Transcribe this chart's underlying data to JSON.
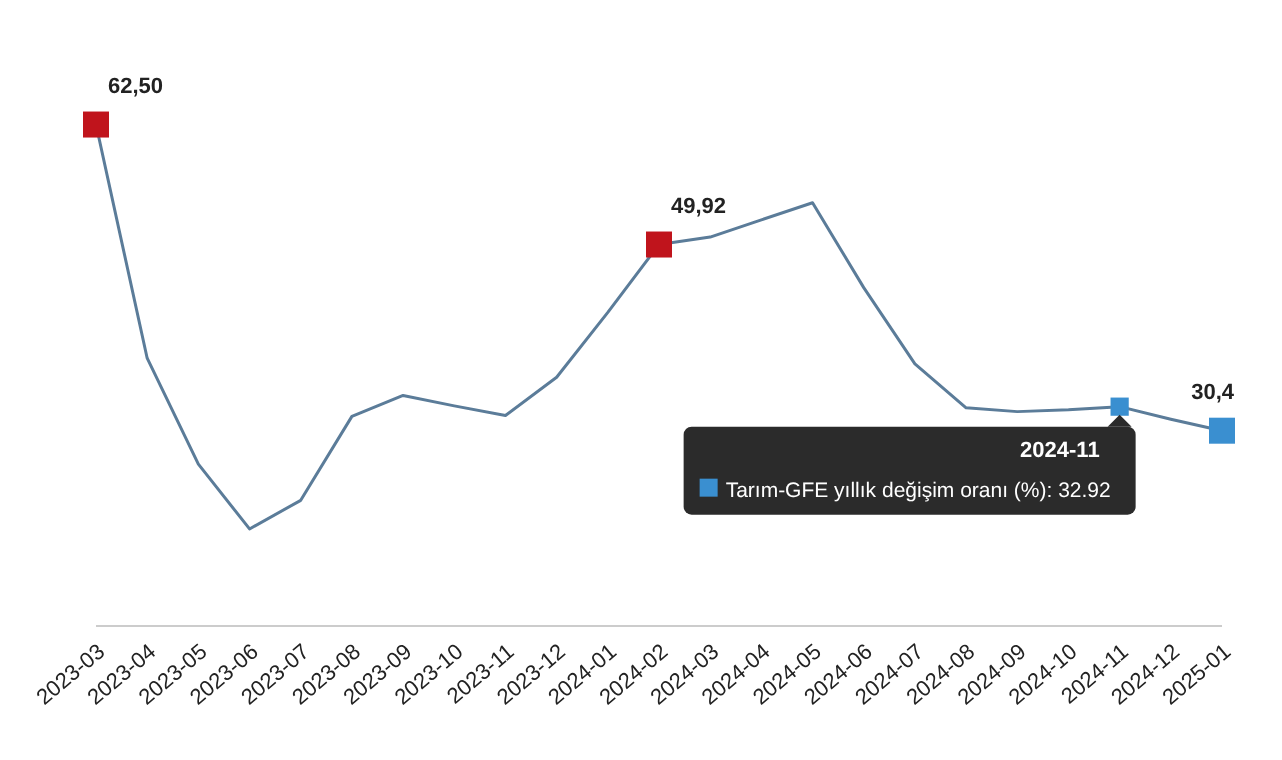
{
  "chart_data": {
    "type": "line",
    "categories": [
      "2023-03",
      "2023-04",
      "2023-05",
      "2023-06",
      "2023-07",
      "2023-08",
      "2023-09",
      "2023-10",
      "2023-11",
      "2023-12",
      "2024-01",
      "2024-02",
      "2024-03",
      "2024-04",
      "2024-05",
      "2024-06",
      "2024-07",
      "2024-08",
      "2024-09",
      "2024-10",
      "2024-11",
      "2024-12",
      "2025-01"
    ],
    "series": [
      {
        "name": "Tarım-GFE yıllık değişim oranı (%):",
        "color": "#5b7c99",
        "values": [
          62.5,
          38,
          26.9,
          20.1,
          23.1,
          31.9,
          34.1,
          33,
          32,
          36,
          42.8,
          49.92,
          50.7,
          52.5,
          54.3,
          45.4,
          37.4,
          32.8,
          32.4,
          32.6,
          32.92,
          31.6,
          30.4
        ],
        "colors": [
          "#c0141c",
          null,
          null,
          null,
          null,
          null,
          null,
          null,
          null,
          null,
          null,
          "#c0141c",
          null,
          null,
          null,
          null,
          null,
          null,
          null,
          null,
          "#3a8fd0",
          null,
          "#3a8fd0"
        ],
        "value_labels": [
          "62,50",
          null,
          null,
          null,
          null,
          null,
          null,
          null,
          null,
          null,
          null,
          "49,92",
          null,
          null,
          null,
          null,
          null,
          null,
          null,
          null,
          "32.92",
          null,
          "30,4"
        ]
      }
    ],
    "line_style": "solid",
    "grid": false,
    "legend": false,
    "annotations": [
      {
        "text": "2024-11",
        "x": "2024-11",
        "y": 32.92
      }
    ]
  }
}
